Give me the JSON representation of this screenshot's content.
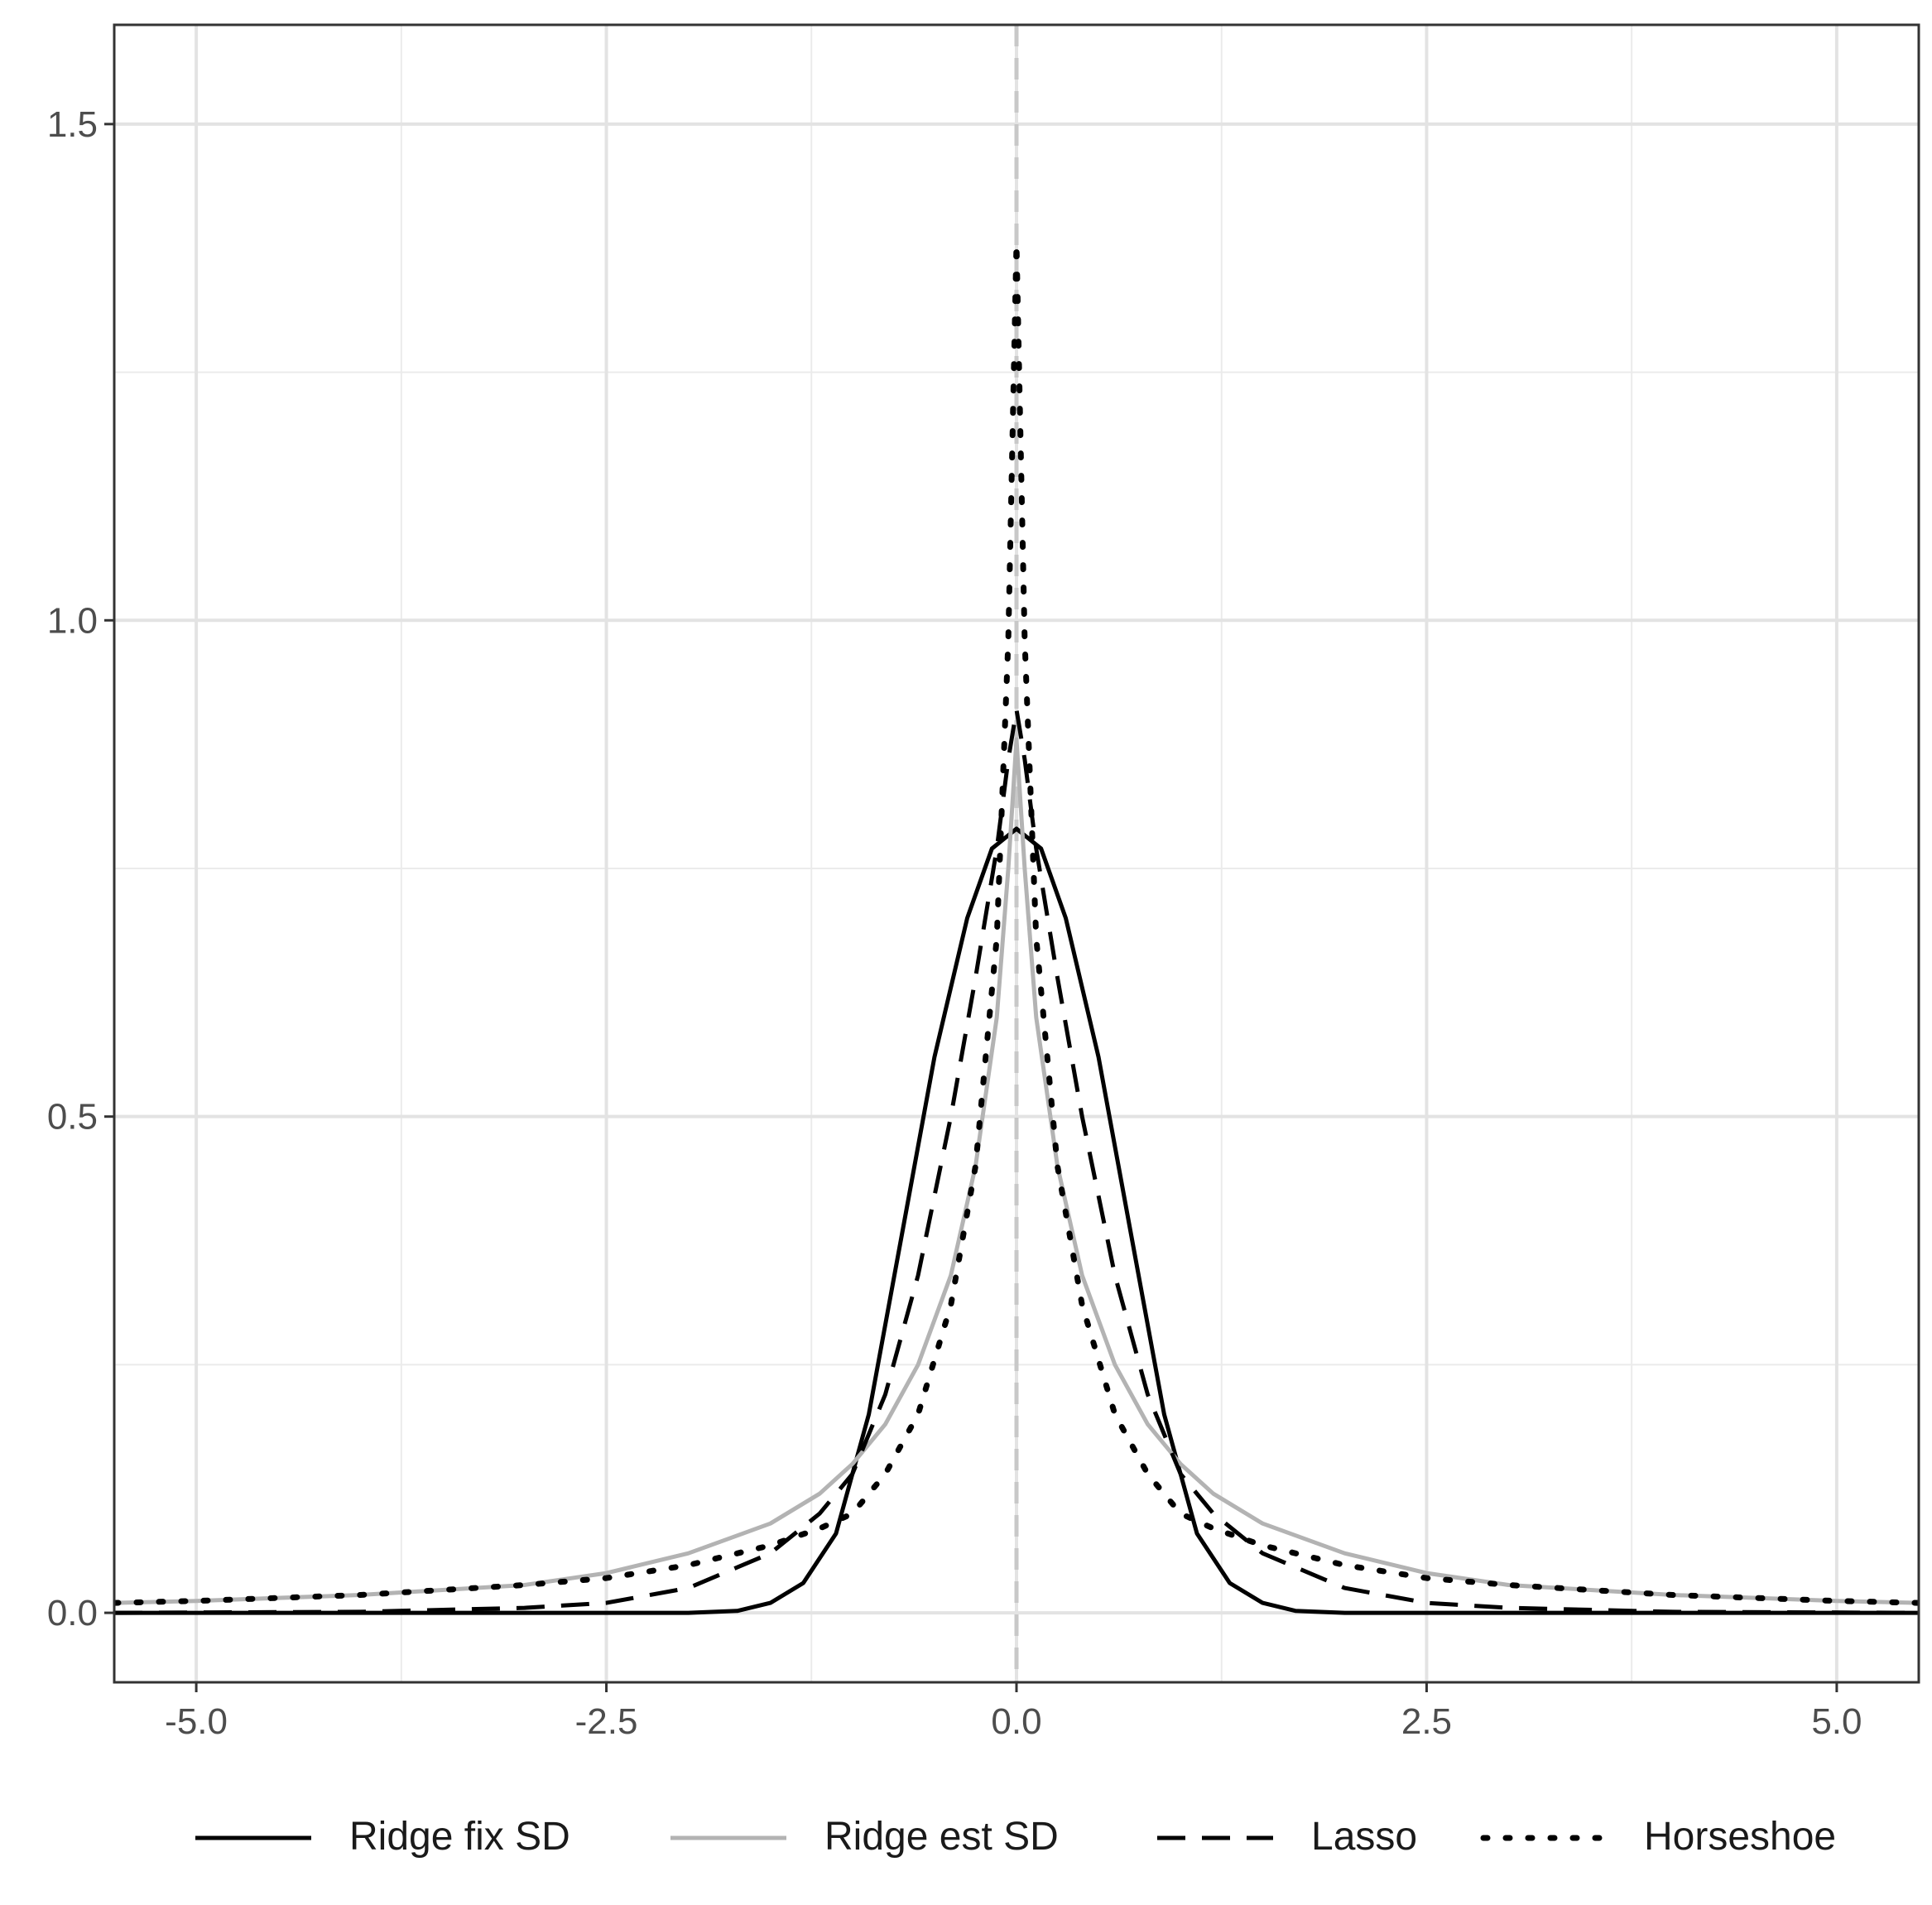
{
  "chart_data": {
    "type": "line",
    "title": "",
    "xlabel": "",
    "ylabel": "",
    "xlim": [
      -5.5,
      5.5
    ],
    "ylim": [
      -0.07,
      1.6
    ],
    "x_ticks": [
      {
        "value": -5.0,
        "label": "-5.0"
      },
      {
        "value": -2.5,
        "label": "-2.5"
      },
      {
        "value": 0.0,
        "label": "0.0"
      },
      {
        "value": 2.5,
        "label": "2.5"
      },
      {
        "value": 5.0,
        "label": "5.0"
      }
    ],
    "y_ticks": [
      {
        "value": 0.0,
        "label": "0.0"
      },
      {
        "value": 0.5,
        "label": "0.5"
      },
      {
        "value": 1.0,
        "label": "1.0"
      },
      {
        "value": 1.5,
        "label": "1.5"
      }
    ],
    "grid": true,
    "legend_position": "bottom",
    "reference_line": {
      "x": 0,
      "style": "dashed",
      "color": "#c8c8c8"
    },
    "series": [
      {
        "name": "Ridge fix SD",
        "color": "#000000",
        "dash": "solid",
        "x": [
          -5.5,
          -3,
          -2,
          -1.7,
          -1.5,
          -1.3,
          -1.1,
          -0.9,
          -0.7,
          -0.5,
          -0.3,
          -0.15,
          0,
          0.15,
          0.3,
          0.5,
          0.7,
          0.9,
          1.1,
          1.3,
          1.5,
          1.7,
          2,
          3,
          5.5
        ],
        "y": [
          0,
          0,
          0,
          0.002,
          0.01,
          0.03,
          0.08,
          0.2,
          0.38,
          0.56,
          0.7,
          0.77,
          0.79,
          0.77,
          0.7,
          0.56,
          0.38,
          0.2,
          0.08,
          0.03,
          0.01,
          0.002,
          0,
          0,
          0
        ]
      },
      {
        "name": "Ridge est SD",
        "color": "#b3b3b3",
        "dash": "solid",
        "x": [
          -5.5,
          -5,
          -4,
          -3,
          -2.5,
          -2,
          -1.5,
          -1.2,
          -1,
          -0.8,
          -0.6,
          -0.4,
          -0.25,
          -0.12,
          -0.05,
          0,
          0.05,
          0.12,
          0.25,
          0.4,
          0.6,
          0.8,
          1,
          1.2,
          1.5,
          2,
          2.5,
          3,
          4,
          5,
          5.5
        ],
        "y": [
          0.01,
          0.012,
          0.018,
          0.028,
          0.04,
          0.06,
          0.09,
          0.12,
          0.15,
          0.19,
          0.25,
          0.34,
          0.45,
          0.6,
          0.75,
          0.88,
          0.75,
          0.6,
          0.45,
          0.34,
          0.25,
          0.19,
          0.15,
          0.12,
          0.09,
          0.06,
          0.04,
          0.028,
          0.018,
          0.012,
          0.01
        ]
      },
      {
        "name": "Lasso",
        "color": "#000000",
        "dash": "dashed",
        "x": [
          -5.5,
          -4,
          -3,
          -2.5,
          -2,
          -1.5,
          -1.2,
          -1,
          -0.8,
          -0.6,
          -0.4,
          -0.25,
          -0.12,
          -0.05,
          0,
          0.05,
          0.12,
          0.25,
          0.4,
          0.6,
          0.8,
          1,
          1.2,
          1.5,
          2,
          2.5,
          3,
          4,
          5.5
        ],
        "y": [
          0,
          0.001,
          0.005,
          0.01,
          0.025,
          0.06,
          0.1,
          0.14,
          0.22,
          0.34,
          0.5,
          0.64,
          0.77,
          0.86,
          0.91,
          0.86,
          0.77,
          0.64,
          0.5,
          0.34,
          0.22,
          0.14,
          0.1,
          0.06,
          0.025,
          0.01,
          0.005,
          0.001,
          0
        ]
      },
      {
        "name": "Horseshoe",
        "color": "#000000",
        "dash": "dotted",
        "x": [
          -5.5,
          -5,
          -4,
          -3,
          -2.5,
          -2,
          -1.5,
          -1.2,
          -1,
          -0.8,
          -0.6,
          -0.4,
          -0.25,
          -0.12,
          -0.05,
          0,
          0.05,
          0.12,
          0.25,
          0.4,
          0.6,
          0.8,
          1,
          1.2,
          1.5,
          2,
          2.5,
          3,
          4,
          5,
          5.5
        ],
        "y": [
          0.01,
          0.012,
          0.018,
          0.028,
          0.035,
          0.048,
          0.068,
          0.085,
          0.1,
          0.14,
          0.2,
          0.31,
          0.45,
          0.68,
          0.98,
          1.38,
          0.98,
          0.68,
          0.45,
          0.31,
          0.2,
          0.14,
          0.1,
          0.085,
          0.068,
          0.048,
          0.035,
          0.028,
          0.018,
          0.012,
          0.01
        ]
      }
    ]
  }
}
